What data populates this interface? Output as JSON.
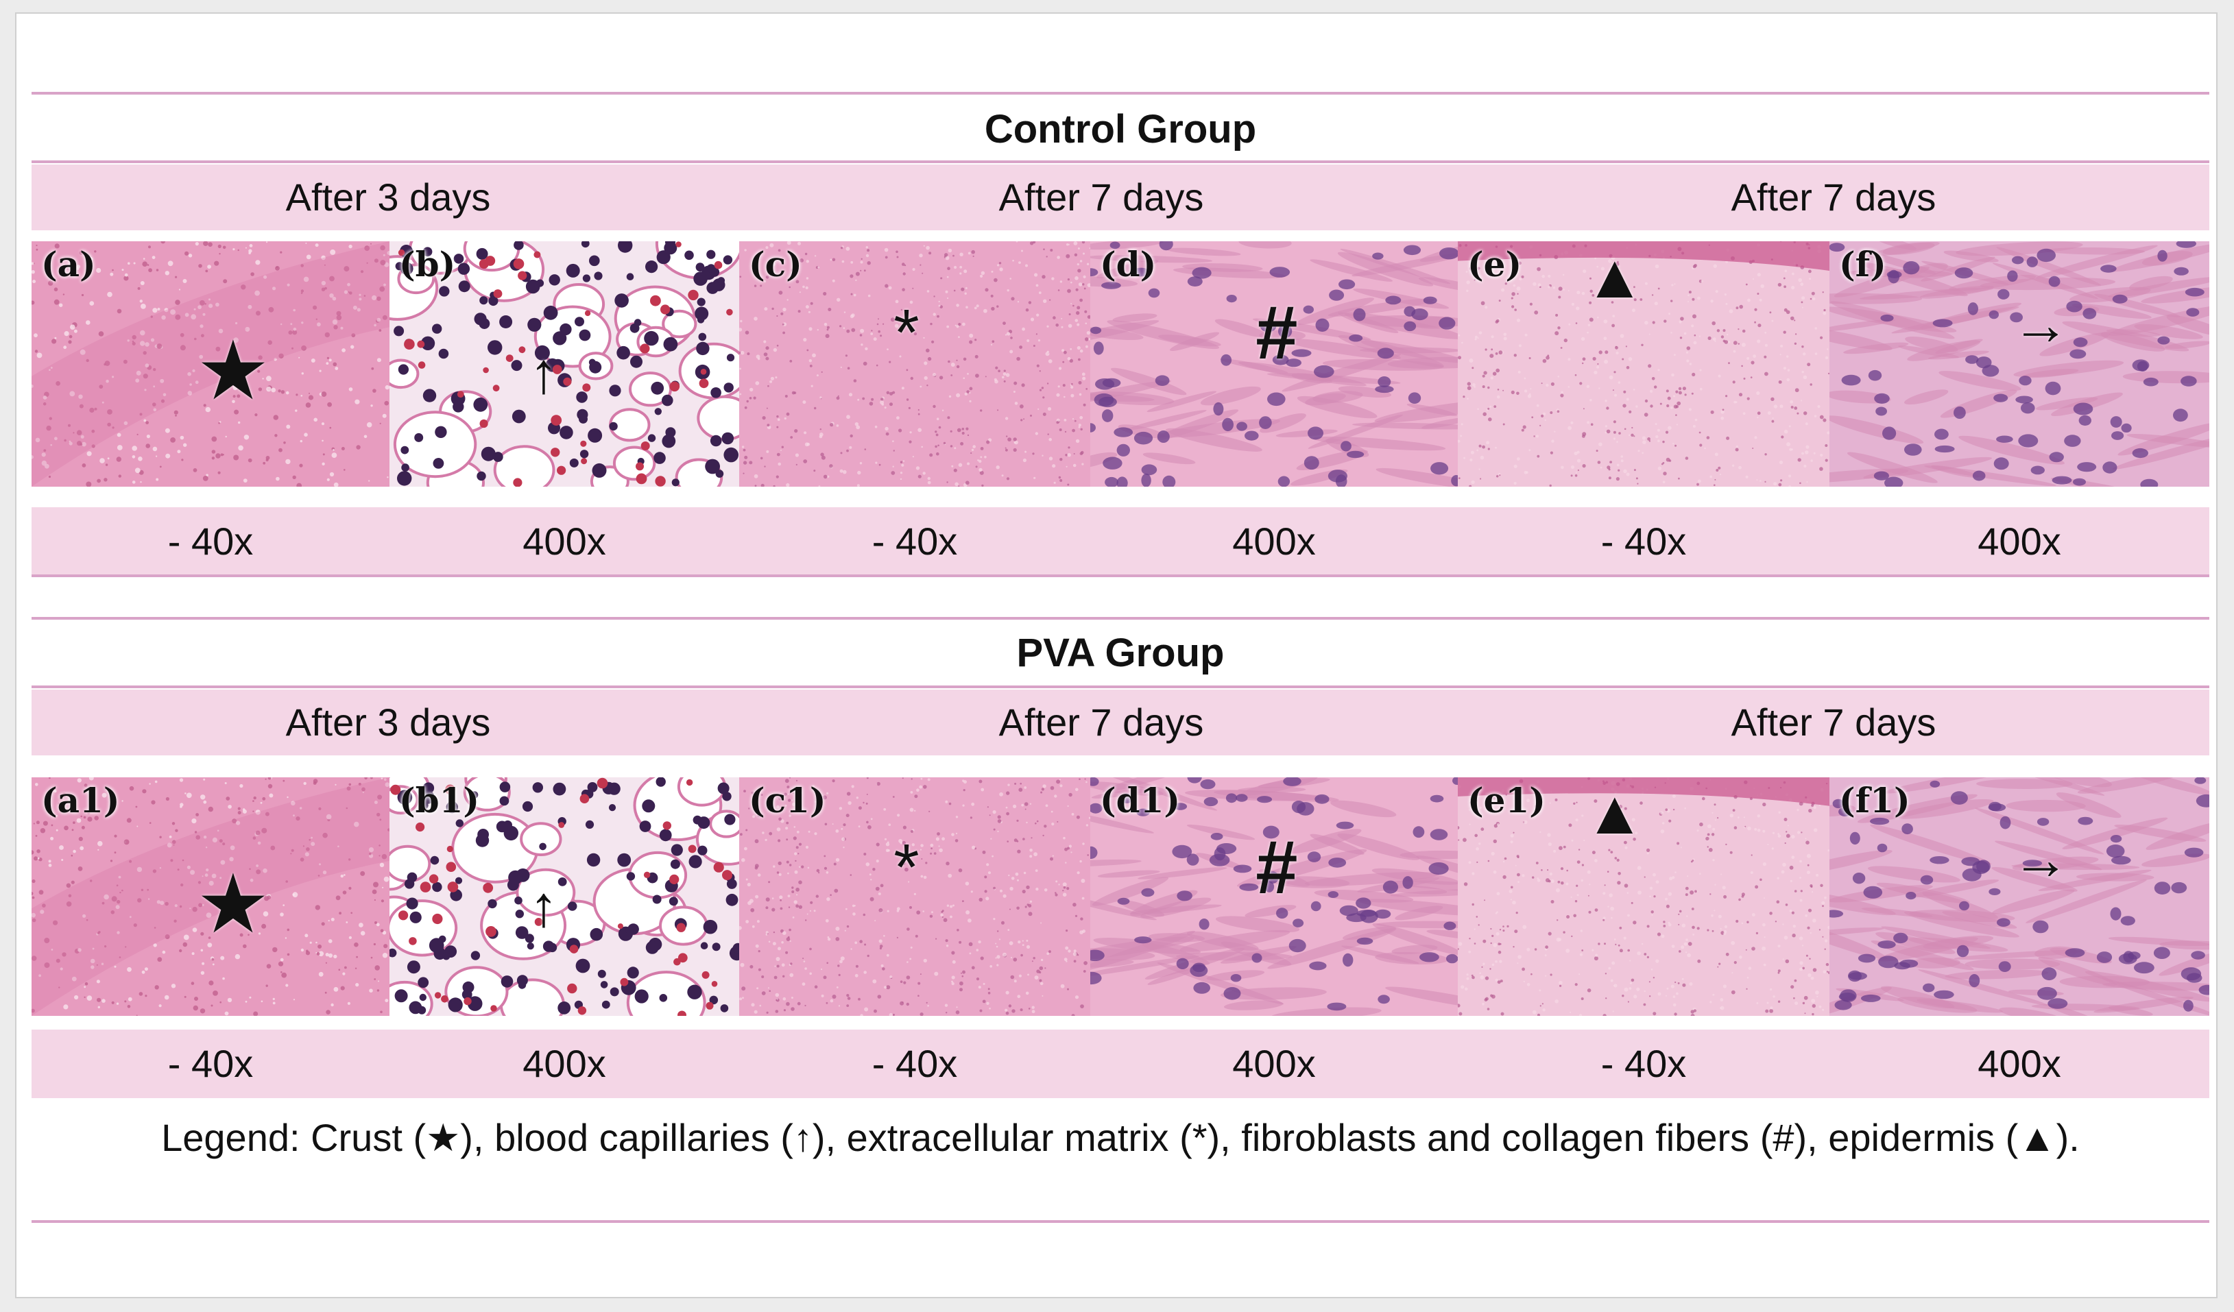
{
  "control": {
    "title": "Control Group",
    "subheaders": [
      "After 3 days",
      "After 7 days",
      "After 7 days"
    ],
    "magnifications": [
      "- 40x",
      "400x",
      "- 40x",
      "400x",
      "- 40x",
      "400x"
    ],
    "panels": [
      {
        "label": "(a)",
        "marker": "★"
      },
      {
        "label": "(b)",
        "marker": "↑"
      },
      {
        "label": "(c)",
        "marker": "*"
      },
      {
        "label": "(d)",
        "marker": "#"
      },
      {
        "label": "(e)",
        "marker": "▲"
      },
      {
        "label": "(f)",
        "marker": "→"
      }
    ]
  },
  "pva": {
    "title": "PVA Group",
    "subheaders": [
      "After 3 days",
      "After 7 days",
      "After 7 days"
    ],
    "magnifications": [
      "- 40x",
      "400x",
      "- 40x",
      "400x",
      "- 40x",
      "400x"
    ],
    "panels": [
      {
        "label": "(a1)",
        "marker": "★"
      },
      {
        "label": "(b1)",
        "marker": "↑"
      },
      {
        "label": "(c1)",
        "marker": "*"
      },
      {
        "label": "(d1)",
        "marker": "#"
      },
      {
        "label": "(e1)",
        "marker": "▲"
      },
      {
        "label": "(f1)",
        "marker": "→"
      }
    ]
  },
  "legend": "Legend: Crust (★), blood capillaries (↑), extracellular matrix (*), fibroblasts and collagen fibers (#), epidermis (▲).",
  "colors": {
    "band": "#f4d6e6",
    "rule": "#d9a3c8",
    "tissue_pink": "#e8a3c2",
    "tissue_light": "#f1c8dc",
    "nucleus": "#3a2150"
  }
}
